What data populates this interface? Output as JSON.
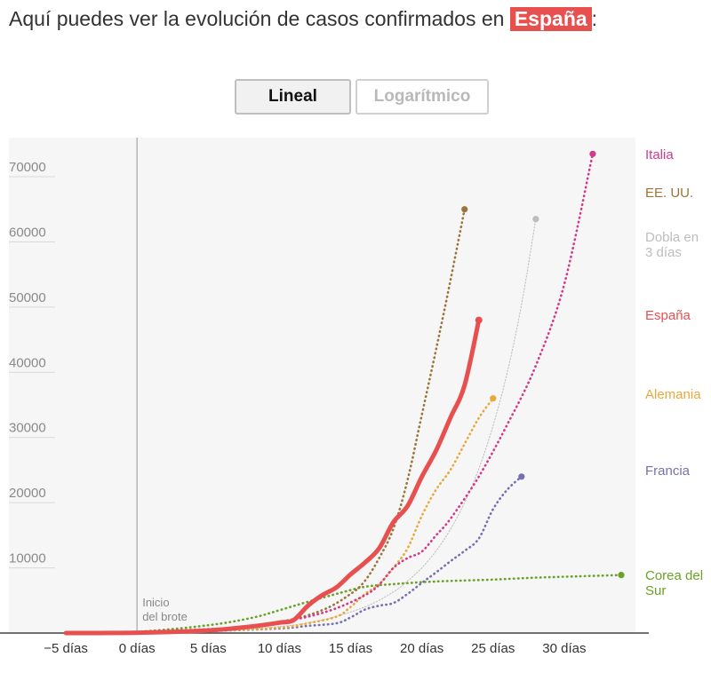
{
  "header": {
    "title_prefix": "Aquí puedes ver la evolución de casos confirmados en",
    "country": "España",
    "title_suffix": ":"
  },
  "toggles": [
    {
      "label": "Lineal",
      "active": true
    },
    {
      "label": "Logarítmico",
      "active": false
    }
  ],
  "colors": {
    "Italia": "#d23a8a",
    "EE. UU.": "#9b7437",
    "Dobla en 3 días": "#bdbdbd",
    "España": "#e8504f",
    "Alemania": "#e8a93a",
    "Francia": "#7571b0",
    "Corea del Sur": "#6aa128",
    "plot_bg": "#f6f6f6"
  },
  "chart_data": {
    "type": "line",
    "xlim": [
      -9,
      35
    ],
    "ylim": [
      0,
      76000
    ],
    "yticks": [
      {
        "value": 10000,
        "label": "10000"
      },
      {
        "value": 20000,
        "label": "20000"
      },
      {
        "value": 30000,
        "label": "30000"
      },
      {
        "value": 40000,
        "label": "40000"
      },
      {
        "value": 50000,
        "label": "50000"
      },
      {
        "value": 60000,
        "label": "60000"
      },
      {
        "value": 70000,
        "label": "70000"
      }
    ],
    "xticks": [
      {
        "value": -5,
        "label": "−5 días"
      },
      {
        "value": 0,
        "label": "0 días"
      },
      {
        "value": 5,
        "label": "5 días"
      },
      {
        "value": 10,
        "label": "10 días"
      },
      {
        "value": 15,
        "label": "15 días"
      },
      {
        "value": 20,
        "label": "20 días"
      },
      {
        "value": 25,
        "label": "25 días"
      },
      {
        "value": 30,
        "label": "30 días"
      }
    ],
    "annotation": {
      "x": 0,
      "lines": [
        "Inicio",
        "del brote"
      ]
    },
    "series": [
      {
        "name": "Italia",
        "style": "dotted",
        "legend_lines": [
          "Italia"
        ],
        "x": [
          -5,
          0,
          5,
          8,
          10,
          12,
          14,
          16,
          17,
          18,
          19,
          20,
          21,
          22,
          24,
          26,
          28,
          30,
          32
        ],
        "y": [
          0,
          200,
          600,
          900,
          1700,
          2500,
          3800,
          5800,
          7400,
          10000,
          11500,
          12500,
          15000,
          17500,
          24000,
          32000,
          41000,
          53500,
          73500
        ]
      },
      {
        "name": "EE. UU.",
        "style": "dotted",
        "legend_lines": [
          "EE. UU."
        ],
        "x": [
          -5,
          0,
          5,
          10,
          13,
          15,
          16,
          17,
          18,
          19,
          20,
          21,
          22,
          23
        ],
        "y": [
          0,
          100,
          400,
          1700,
          3500,
          6000,
          8000,
          11500,
          16000,
          23500,
          33500,
          43500,
          54000,
          65000
        ]
      },
      {
        "name": "Dobla en 3 días",
        "style": "thin",
        "legend_lines": [
          "Dobla en",
          "3 días"
        ],
        "x": [
          -5,
          0,
          5,
          10,
          13,
          16,
          18,
          19,
          20,
          21,
          22,
          23,
          24,
          25,
          26,
          27,
          28
        ],
        "y": [
          0,
          100,
          300,
          1000,
          2000,
          4000,
          6300,
          8000,
          10000,
          12600,
          15900,
          20000,
          25200,
          31800,
          40000,
          50400,
          63500
        ]
      },
      {
        "name": "España",
        "style": "solid",
        "legend_lines": [
          "España"
        ],
        "x": [
          -5,
          0,
          5,
          8,
          10,
          11,
          12,
          13,
          14,
          15,
          16,
          17,
          18,
          19,
          20,
          21,
          22,
          23,
          24
        ],
        "y": [
          0,
          50,
          400,
          1000,
          1600,
          2000,
          4200,
          5800,
          7000,
          9000,
          10800,
          13000,
          17000,
          19500,
          24000,
          28000,
          33000,
          38000,
          48000
        ]
      },
      {
        "name": "Alemania",
        "style": "dotted",
        "legend_lines": [
          "Alemania"
        ],
        "x": [
          -5,
          0,
          5,
          10,
          12,
          14,
          15,
          16,
          17,
          18,
          19,
          20,
          21,
          22,
          23,
          24,
          25
        ],
        "y": [
          0,
          50,
          300,
          800,
          1500,
          2500,
          4000,
          6000,
          7500,
          10000,
          13000,
          18000,
          22000,
          25000,
          29000,
          33000,
          36000
        ]
      },
      {
        "name": "Francia",
        "style": "dotted",
        "legend_lines": [
          "Francia"
        ],
        "x": [
          -5,
          0,
          5,
          10,
          12,
          14,
          15,
          16,
          17,
          18,
          19,
          20,
          21,
          22,
          23,
          24,
          25,
          26,
          27
        ],
        "y": [
          0,
          50,
          300,
          700,
          1100,
          1500,
          2400,
          3600,
          4200,
          4600,
          6000,
          7700,
          9300,
          11000,
          12600,
          14500,
          19000,
          22000,
          24000
        ]
      },
      {
        "name": "Corea del Sur",
        "style": "dotted",
        "legend_lines": [
          "Corea del",
          "Sur"
        ],
        "x": [
          -5,
          0,
          5,
          8,
          10,
          12,
          14,
          16,
          18,
          20,
          22,
          25,
          28,
          31,
          34
        ],
        "y": [
          0,
          200,
          1200,
          2300,
          3500,
          4800,
          6000,
          7100,
          7500,
          7800,
          8000,
          8200,
          8500,
          8700,
          8900
        ]
      }
    ]
  }
}
